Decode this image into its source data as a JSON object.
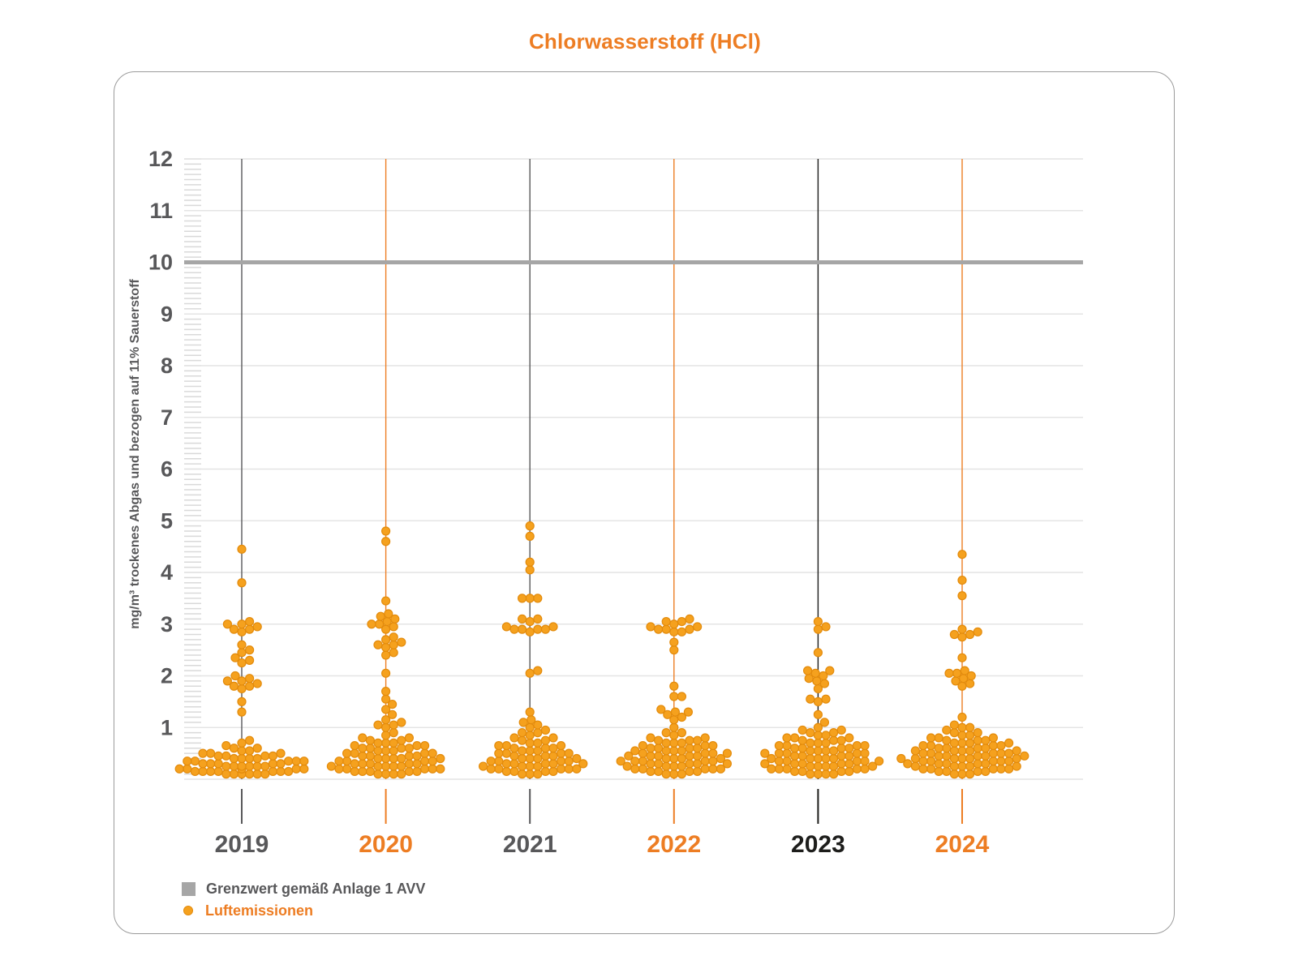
{
  "title": "Chlorwasserstoff (HCl)",
  "colors": {
    "accent_orange": "#ed7d23",
    "dot_fill": "#f5a11e",
    "dot_stroke": "#e38b0c",
    "gray_text": "#58585a",
    "black_text": "#1d1d1b",
    "grid": "#e4e4e4",
    "minor_tick": "#d9d9d9",
    "limit_line": "#a6a6a6",
    "card_border": "#9b9b9b"
  },
  "chart_data": {
    "type": "beeswarm",
    "title": "Chlorwasserstoff (HCl)",
    "ylabel": "mg/m³ trockenes Abgas und bezogen auf 11% Sauerstoff",
    "ylim": [
      0,
      12
    ],
    "ytick_labels": [
      "1",
      "2",
      "3",
      "4",
      "5",
      "6",
      "7",
      "8",
      "9",
      "10",
      "11",
      "12"
    ],
    "minor_tick_step": 0.1,
    "grid": true,
    "legend_position": "bottom-left",
    "limit_line": {
      "value": 10,
      "label": "Grenzwert gemäß Anlage 1 AVV"
    },
    "series_label": "Luftemissionen",
    "series": [
      {
        "year": "2019",
        "axis_color": "#58585a",
        "values": [
          4.45,
          3.8,
          3.05,
          3.0,
          3.0,
          2.95,
          2.9,
          2.9,
          2.85,
          2.6,
          2.5,
          2.45,
          2.35,
          2.3,
          2.25,
          2.0,
          1.95,
          1.9,
          1.9,
          1.85,
          1.8,
          1.8,
          1.75,
          1.5,
          1.3,
          0.75,
          0.7,
          0.65,
          0.6,
          0.6,
          0.55,
          0.55,
          0.5,
          0.5,
          0.5,
          0.45,
          0.45,
          0.45,
          0.45,
          0.4,
          0.4,
          0.4,
          0.4,
          0.35,
          0.35,
          0.35,
          0.35,
          0.35,
          0.3,
          0.3,
          0.3,
          0.3,
          0.3,
          0.25,
          0.25,
          0.25,
          0.25,
          0.25,
          0.25,
          0.2,
          0.2,
          0.2,
          0.2,
          0.2,
          0.2,
          0.15,
          0.15,
          0.15,
          0.15,
          0.15,
          0.15,
          0.15,
          0.1,
          0.1,
          0.1,
          0.1,
          0.1,
          0.1
        ]
      },
      {
        "year": "2020",
        "axis_color": "#ed7d23",
        "values": [
          4.8,
          4.6,
          3.45,
          3.2,
          3.15,
          3.1,
          3.05,
          3.0,
          3.0,
          2.95,
          2.9,
          2.75,
          2.7,
          2.65,
          2.6,
          2.6,
          2.55,
          2.45,
          2.4,
          2.05,
          1.7,
          1.55,
          1.45,
          1.35,
          1.25,
          1.15,
          1.1,
          1.05,
          1.05,
          1.0,
          0.9,
          0.85,
          0.8,
          0.8,
          0.75,
          0.75,
          0.7,
          0.7,
          0.7,
          0.65,
          0.65,
          0.65,
          0.6,
          0.6,
          0.6,
          0.6,
          0.55,
          0.55,
          0.55,
          0.5,
          0.5,
          0.5,
          0.5,
          0.45,
          0.45,
          0.45,
          0.45,
          0.4,
          0.4,
          0.4,
          0.4,
          0.4,
          0.35,
          0.35,
          0.35,
          0.35,
          0.3,
          0.3,
          0.3,
          0.3,
          0.3,
          0.25,
          0.25,
          0.25,
          0.25,
          0.25,
          0.2,
          0.2,
          0.2,
          0.2,
          0.2,
          0.15,
          0.15,
          0.15,
          0.15,
          0.15,
          0.1,
          0.1,
          0.1,
          0.1
        ]
      },
      {
        "year": "2021",
        "axis_color": "#58585a",
        "values": [
          4.9,
          4.7,
          4.2,
          4.05,
          3.5,
          3.5,
          3.5,
          3.1,
          3.1,
          3.05,
          2.95,
          2.95,
          2.9,
          2.9,
          2.9,
          2.9,
          2.85,
          2.1,
          2.05,
          1.3,
          1.15,
          1.1,
          1.05,
          1.0,
          0.95,
          0.9,
          0.9,
          0.85,
          0.8,
          0.8,
          0.75,
          0.75,
          0.7,
          0.7,
          0.65,
          0.65,
          0.65,
          0.6,
          0.6,
          0.6,
          0.55,
          0.55,
          0.55,
          0.5,
          0.5,
          0.5,
          0.5,
          0.45,
          0.45,
          0.45,
          0.4,
          0.4,
          0.4,
          0.4,
          0.35,
          0.35,
          0.35,
          0.35,
          0.3,
          0.3,
          0.3,
          0.3,
          0.3,
          0.25,
          0.25,
          0.25,
          0.25,
          0.2,
          0.2,
          0.2,
          0.2,
          0.2,
          0.15,
          0.15,
          0.15,
          0.15,
          0.1,
          0.1,
          0.1
        ]
      },
      {
        "year": "2022",
        "axis_color": "#ed7d23",
        "values": [
          3.1,
          3.05,
          3.05,
          3.0,
          2.95,
          2.95,
          2.9,
          2.9,
          2.9,
          2.85,
          2.85,
          2.65,
          2.5,
          1.8,
          1.6,
          1.6,
          1.35,
          1.3,
          1.3,
          1.25,
          1.2,
          1.15,
          1.0,
          0.9,
          0.9,
          0.85,
          0.8,
          0.8,
          0.75,
          0.75,
          0.75,
          0.7,
          0.7,
          0.7,
          0.65,
          0.65,
          0.65,
          0.6,
          0.6,
          0.6,
          0.6,
          0.55,
          0.55,
          0.55,
          0.55,
          0.5,
          0.5,
          0.5,
          0.5,
          0.45,
          0.45,
          0.45,
          0.45,
          0.45,
          0.4,
          0.4,
          0.4,
          0.4,
          0.35,
          0.35,
          0.35,
          0.35,
          0.35,
          0.3,
          0.3,
          0.3,
          0.3,
          0.3,
          0.25,
          0.25,
          0.25,
          0.25,
          0.2,
          0.2,
          0.2,
          0.2,
          0.2,
          0.15,
          0.15,
          0.15,
          0.15,
          0.1,
          0.1,
          0.1
        ]
      },
      {
        "year": "2023",
        "axis_color": "#1d1d1b",
        "values": [
          3.05,
          2.95,
          2.9,
          2.45,
          2.1,
          2.1,
          2.05,
          2.0,
          1.95,
          1.9,
          1.85,
          1.75,
          1.55,
          1.55,
          1.5,
          1.25,
          1.1,
          1.0,
          0.95,
          0.95,
          0.9,
          0.9,
          0.85,
          0.85,
          0.8,
          0.8,
          0.8,
          0.75,
          0.75,
          0.75,
          0.7,
          0.7,
          0.7,
          0.65,
          0.65,
          0.65,
          0.65,
          0.6,
          0.6,
          0.6,
          0.6,
          0.55,
          0.55,
          0.55,
          0.55,
          0.5,
          0.5,
          0.5,
          0.5,
          0.5,
          0.45,
          0.45,
          0.45,
          0.45,
          0.4,
          0.4,
          0.4,
          0.4,
          0.4,
          0.35,
          0.35,
          0.35,
          0.35,
          0.35,
          0.3,
          0.3,
          0.3,
          0.3,
          0.3,
          0.25,
          0.25,
          0.25,
          0.25,
          0.25,
          0.2,
          0.2,
          0.2,
          0.2,
          0.2,
          0.15,
          0.15,
          0.15,
          0.15,
          0.1,
          0.1,
          0.1,
          0.1
        ]
      },
      {
        "year": "2024",
        "axis_color": "#ed7d23",
        "values": [
          4.35,
          3.85,
          3.55,
          2.9,
          2.85,
          2.8,
          2.8,
          2.75,
          2.35,
          2.1,
          2.05,
          2.05,
          2.0,
          1.95,
          1.9,
          1.85,
          1.8,
          1.2,
          1.05,
          1.0,
          1.0,
          0.95,
          0.9,
          0.9,
          0.85,
          0.85,
          0.8,
          0.8,
          0.8,
          0.75,
          0.75,
          0.75,
          0.7,
          0.7,
          0.7,
          0.7,
          0.65,
          0.65,
          0.65,
          0.65,
          0.6,
          0.6,
          0.6,
          0.6,
          0.55,
          0.55,
          0.55,
          0.55,
          0.55,
          0.5,
          0.5,
          0.5,
          0.5,
          0.5,
          0.45,
          0.45,
          0.45,
          0.45,
          0.45,
          0.4,
          0.4,
          0.4,
          0.4,
          0.4,
          0.4,
          0.35,
          0.35,
          0.35,
          0.35,
          0.35,
          0.3,
          0.3,
          0.3,
          0.3,
          0.3,
          0.25,
          0.25,
          0.25,
          0.25,
          0.25,
          0.2,
          0.2,
          0.2,
          0.2,
          0.2,
          0.15,
          0.15,
          0.15,
          0.15,
          0.1,
          0.1,
          0.1
        ]
      }
    ]
  }
}
